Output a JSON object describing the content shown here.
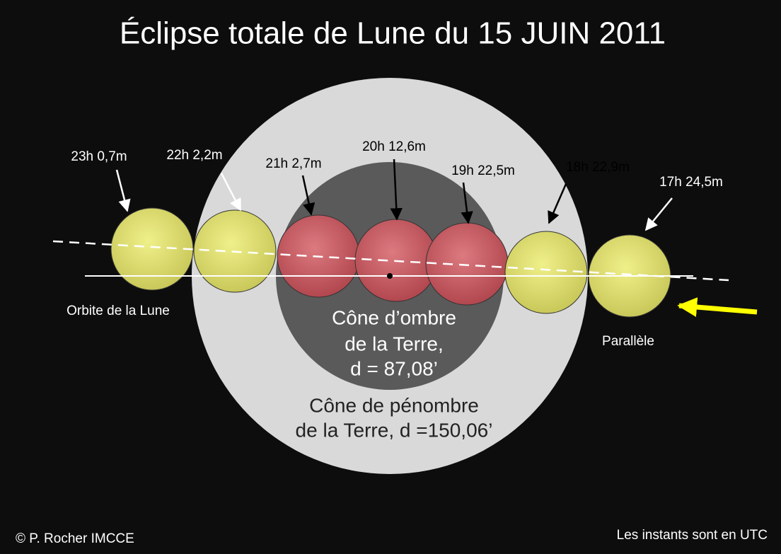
{
  "title": "Éclipse totale de Lune du 15 JUIN 2011",
  "positions": [
    {
      "label": "23h 0,7m"
    },
    {
      "label": "22h 2,2m"
    },
    {
      "label": "21h 2,7m"
    },
    {
      "label": "20h 12,6m"
    },
    {
      "label": "19h 22,5m"
    },
    {
      "label": "18h 22,9m"
    },
    {
      "label": "17h 24,5m"
    }
  ],
  "orbit_label": "Orbite de la Lune",
  "parallel_label": "Parallèle",
  "umbra_label": [
    "Cône d’ombre",
    "de la Terre,",
    "d = 87,08’"
  ],
  "penumbra_label": [
    "Cône de pénombre",
    "de la Terre, d =150,06’"
  ],
  "credit": "© P. Rocher IMCCE",
  "footer": "Les instants sont en UTC"
}
